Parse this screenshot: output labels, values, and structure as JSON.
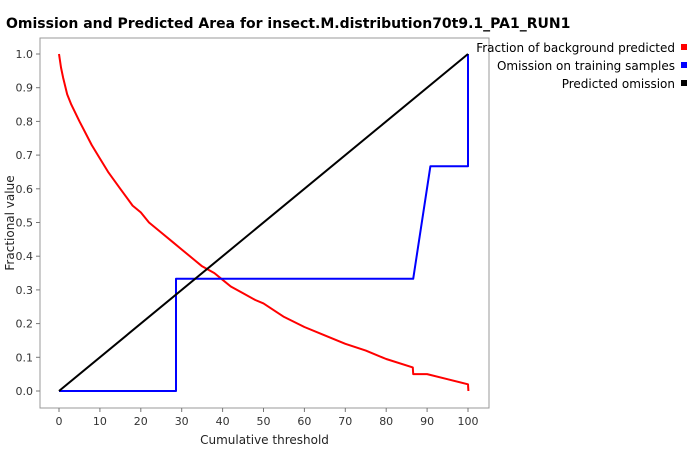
{
  "chart_data": {
    "type": "line",
    "title": "Omission and Predicted Area for insect.M.distribution70t9.1_PA1_RUN1",
    "xlabel": "Cumulative threshold",
    "ylabel": "Fractional value",
    "xlim": [
      0,
      100
    ],
    "ylim": [
      0,
      1
    ],
    "xticks": [
      "0",
      "10",
      "20",
      "30",
      "40",
      "50",
      "60",
      "70",
      "80",
      "90",
      "100"
    ],
    "yticks": [
      "0.0",
      "0.1",
      "0.2",
      "0.3",
      "0.4",
      "0.5",
      "0.6",
      "0.7",
      "0.8",
      "0.9",
      "1.0"
    ],
    "grid": false,
    "legend_position": "top-right",
    "series": [
      {
        "name": "Fraction of background predicted",
        "color": "#ff0000",
        "x": [
          0,
          0.5,
          1,
          2,
          3,
          5,
          8,
          10,
          12,
          15,
          18,
          20,
          22,
          25,
          28,
          30,
          33,
          35,
          38,
          40,
          42,
          45,
          48,
          50,
          55,
          60,
          65,
          70,
          75,
          80,
          86.5,
          86.6,
          90,
          95,
          100,
          100.1
        ],
        "y": [
          1.0,
          0.96,
          0.93,
          0.88,
          0.85,
          0.8,
          0.73,
          0.69,
          0.65,
          0.6,
          0.55,
          0.53,
          0.5,
          0.47,
          0.44,
          0.42,
          0.39,
          0.37,
          0.35,
          0.33,
          0.31,
          0.29,
          0.27,
          0.26,
          0.22,
          0.19,
          0.165,
          0.14,
          0.12,
          0.095,
          0.07,
          0.05,
          0.05,
          0.035,
          0.02,
          0.0
        ]
      },
      {
        "name": "Omission on training samples",
        "color": "#0000ff",
        "x": [
          0,
          28.6,
          28.6,
          86.6,
          90.8,
          100,
          100
        ],
        "y": [
          0.0,
          0.0,
          0.333,
          0.333,
          0.667,
          0.667,
          1.0
        ]
      },
      {
        "name": "Predicted omission",
        "color": "#000000",
        "x": [
          0,
          100
        ],
        "y": [
          0.0,
          1.0
        ]
      }
    ]
  }
}
